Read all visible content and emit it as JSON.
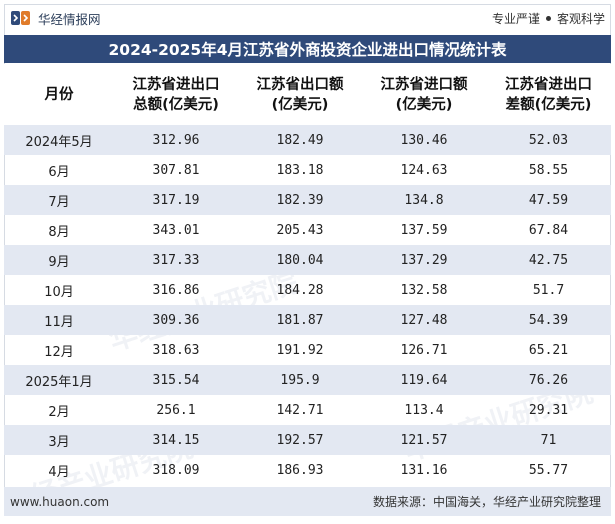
{
  "header": {
    "brand_name": "华经情报网",
    "slogan_left": "专业严谨",
    "slogan_right": "客观科学"
  },
  "title": "2024-2025年4月江苏省外商投资企业进出口情况统计表",
  "table": {
    "columns": [
      {
        "line1": "月份",
        "line2": ""
      },
      {
        "line1": "江苏省进出口",
        "line2": "总额(亿美元)"
      },
      {
        "line1": "江苏省出口额",
        "line2": "(亿美元)"
      },
      {
        "line1": "江苏省进口额",
        "line2": "(亿美元)"
      },
      {
        "line1": "江苏省进出口",
        "line2": "差额(亿美元)"
      }
    ],
    "rows": [
      [
        "2024年5月",
        "312.96",
        "182.49",
        "130.46",
        "52.03"
      ],
      [
        "6月",
        "307.81",
        "183.18",
        "124.63",
        "58.55"
      ],
      [
        "7月",
        "317.19",
        "182.39",
        "134.8",
        "47.59"
      ],
      [
        "8月",
        "343.01",
        "205.43",
        "137.59",
        "67.84"
      ],
      [
        "9月",
        "317.33",
        "180.04",
        "137.29",
        "42.75"
      ],
      [
        "10月",
        "316.86",
        "184.28",
        "132.58",
        "51.7"
      ],
      [
        "11月",
        "309.36",
        "181.87",
        "127.48",
        "54.39"
      ],
      [
        "12月",
        "318.63",
        "191.92",
        "126.71",
        "65.21"
      ],
      [
        "2025年1月",
        "315.54",
        "195.9",
        "119.64",
        "76.26"
      ],
      [
        "2月",
        "256.1",
        "142.71",
        "113.4",
        "29.31"
      ],
      [
        "3月",
        "314.15",
        "192.57",
        "121.57",
        "71"
      ],
      [
        "4月",
        "318.09",
        "186.93",
        "131.16",
        "55.77"
      ]
    ]
  },
  "watermarks": [
    "华经产业研究院",
    "华经产业研究院",
    "华经产业研究院"
  ],
  "footer": {
    "website": "www.huaon.com",
    "source": "数据来源：中国海关，华经产业研究院整理"
  },
  "colors": {
    "title_bg": "#2f4a7a",
    "stripe": "#e3e8f2"
  }
}
